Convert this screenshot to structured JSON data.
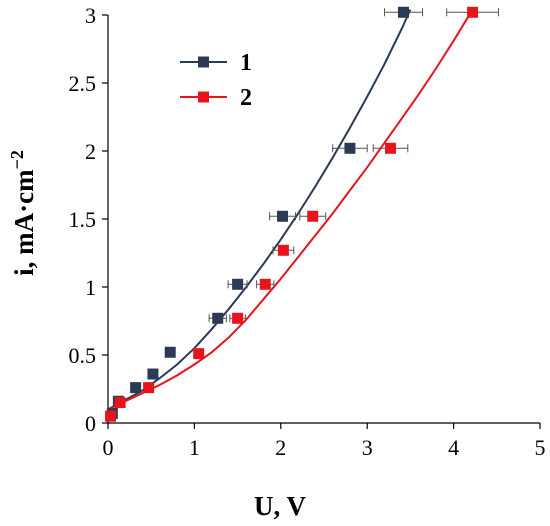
{
  "chart_data": {
    "type": "scatter",
    "xlabel": "U, V",
    "ylabel": "i, mA·cm",
    "ylabel_superscript": "−2",
    "xlim": [
      0,
      5
    ],
    "ylim": [
      0,
      3
    ],
    "xticks": [
      "0",
      "1",
      "2",
      "3",
      "4",
      "5"
    ],
    "yticks": [
      "0",
      "0.5",
      "1",
      "1.5",
      "2",
      "2.5",
      "3"
    ],
    "grid": false,
    "legend_position": "top-left",
    "series": [
      {
        "name": "1",
        "color": "#2b3a55",
        "marker": "square",
        "x": [
          0.05,
          0.12,
          0.32,
          0.52,
          0.72,
          1.27,
          1.5,
          2.02,
          2.8,
          3.42
        ],
        "y": [
          0.07,
          0.16,
          0.26,
          0.36,
          0.52,
          0.77,
          1.02,
          1.52,
          2.02,
          3.02
        ],
        "x_error": [
          0,
          0,
          0,
          0,
          0,
          0.1,
          0.11,
          0.15,
          0.2,
          0.22
        ],
        "fit_x": [
          0,
          0.2,
          0.4,
          0.6,
          0.8,
          1.0,
          1.2,
          1.4,
          1.6,
          1.8,
          2.0,
          2.2,
          2.4,
          2.6,
          2.8,
          3.0,
          3.2,
          3.4,
          3.5
        ],
        "fit_y": [
          0.1,
          0.17,
          0.24,
          0.33,
          0.43,
          0.55,
          0.69,
          0.84,
          1.0,
          1.17,
          1.35,
          1.54,
          1.74,
          1.95,
          2.17,
          2.4,
          2.64,
          2.9,
          3.04
        ]
      },
      {
        "name": "2",
        "color": "#e8141b",
        "marker": "square",
        "x": [
          0.03,
          0.14,
          0.47,
          1.05,
          1.5,
          1.82,
          2.03,
          2.37,
          3.27,
          4.22
        ],
        "y": [
          0.05,
          0.15,
          0.26,
          0.51,
          0.77,
          1.02,
          1.27,
          1.52,
          2.02,
          3.02
        ],
        "x_error": [
          0,
          0,
          0,
          0,
          0.09,
          0.1,
          0.12,
          0.15,
          0.2,
          0.3
        ],
        "fit_x": [
          0,
          0.2,
          0.4,
          0.6,
          0.8,
          1.0,
          1.2,
          1.4,
          1.6,
          1.8,
          2.0,
          2.2,
          2.4,
          2.6,
          2.8,
          3.0,
          3.2,
          3.4,
          3.6,
          3.8,
          4.0,
          4.2
        ],
        "fit_y": [
          0.1,
          0.16,
          0.22,
          0.28,
          0.35,
          0.43,
          0.52,
          0.63,
          0.76,
          0.91,
          1.06,
          1.22,
          1.38,
          1.54,
          1.71,
          1.88,
          2.06,
          2.24,
          2.42,
          2.61,
          2.81,
          3.02
        ]
      }
    ]
  }
}
